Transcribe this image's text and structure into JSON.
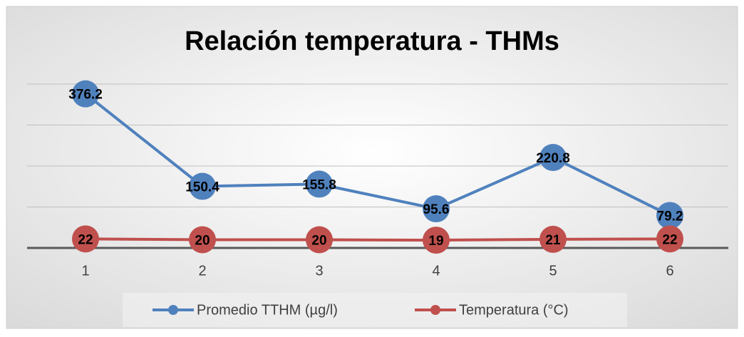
{
  "chart_data": {
    "type": "line",
    "title": "Relación temperatura - THMs",
    "categories": [
      "1",
      "2",
      "3",
      "4",
      "5",
      "6"
    ],
    "series": [
      {
        "name": "Promedio TTHM (µg/l)",
        "color": "#4f81bd",
        "values": [
          376.2,
          150.4,
          155.8,
          95.6,
          220.8,
          79.2
        ]
      },
      {
        "name": "Temperatura (°C)",
        "color": "#c0504d",
        "values": [
          22,
          20,
          20,
          19,
          21,
          22
        ]
      }
    ],
    "ylim": [
      0,
      400
    ],
    "yticks": [
      0,
      100,
      200,
      300,
      400
    ],
    "grid": true,
    "legend": "bottom"
  }
}
